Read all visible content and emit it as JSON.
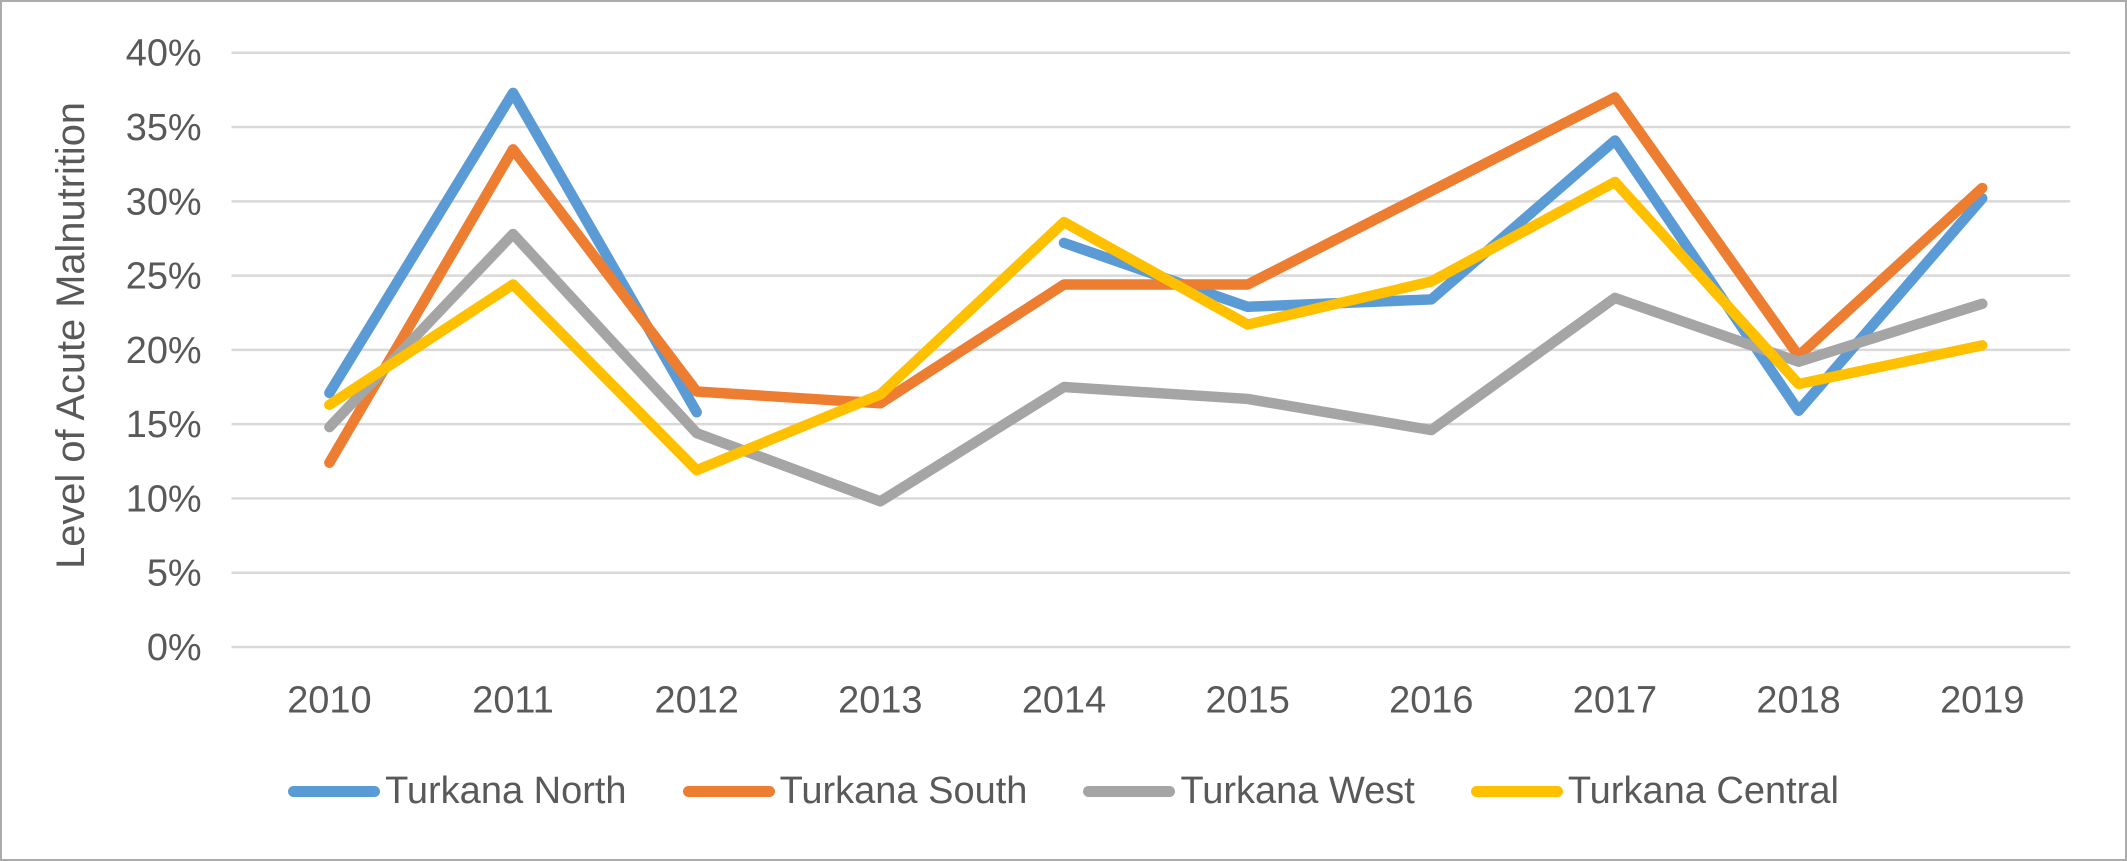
{
  "chart_data": {
    "type": "line",
    "title": "",
    "xlabel": "",
    "ylabel": "Level of Acute Malnutrition",
    "categories": [
      "2010",
      "2011",
      "2012",
      "2013",
      "2014",
      "2015",
      "2016",
      "2017",
      "2018",
      "2019"
    ],
    "y_ticks": [
      0,
      5,
      10,
      15,
      20,
      25,
      30,
      35,
      40
    ],
    "y_tick_labels": [
      "0%",
      "5%",
      "10%",
      "15%",
      "20%",
      "25%",
      "30%",
      "35%",
      "40%"
    ],
    "ylim": [
      0,
      40
    ],
    "grid": true,
    "legend_position": "bottom",
    "series": [
      {
        "name": "Turkana North",
        "color": "#5B9BD5",
        "values": [
          17.1,
          37.3,
          15.8,
          null,
          27.2,
          22.9,
          23.4,
          34.1,
          15.9,
          30.2
        ]
      },
      {
        "name": "Turkana South",
        "color": "#ED7D31",
        "values": [
          12.4,
          33.5,
          17.2,
          16.4,
          24.4,
          24.4,
          30.7,
          37.0,
          19.6,
          30.9
        ]
      },
      {
        "name": "Turkana West",
        "color": "#A5A5A5",
        "values": [
          14.8,
          27.8,
          14.4,
          9.8,
          17.5,
          16.7,
          14.6,
          23.5,
          19.2,
          23.1
        ]
      },
      {
        "name": "Turkana Central",
        "color": "#FFC000",
        "values": [
          16.3,
          24.4,
          11.9,
          17.0,
          28.6,
          21.7,
          24.6,
          31.3,
          17.7,
          20.3
        ]
      }
    ]
  },
  "colors": {
    "axis_text": "#595959",
    "gridline": "#D9D9D9",
    "background": "#FFFFFF",
    "frame_border": "#ABABAB"
  }
}
